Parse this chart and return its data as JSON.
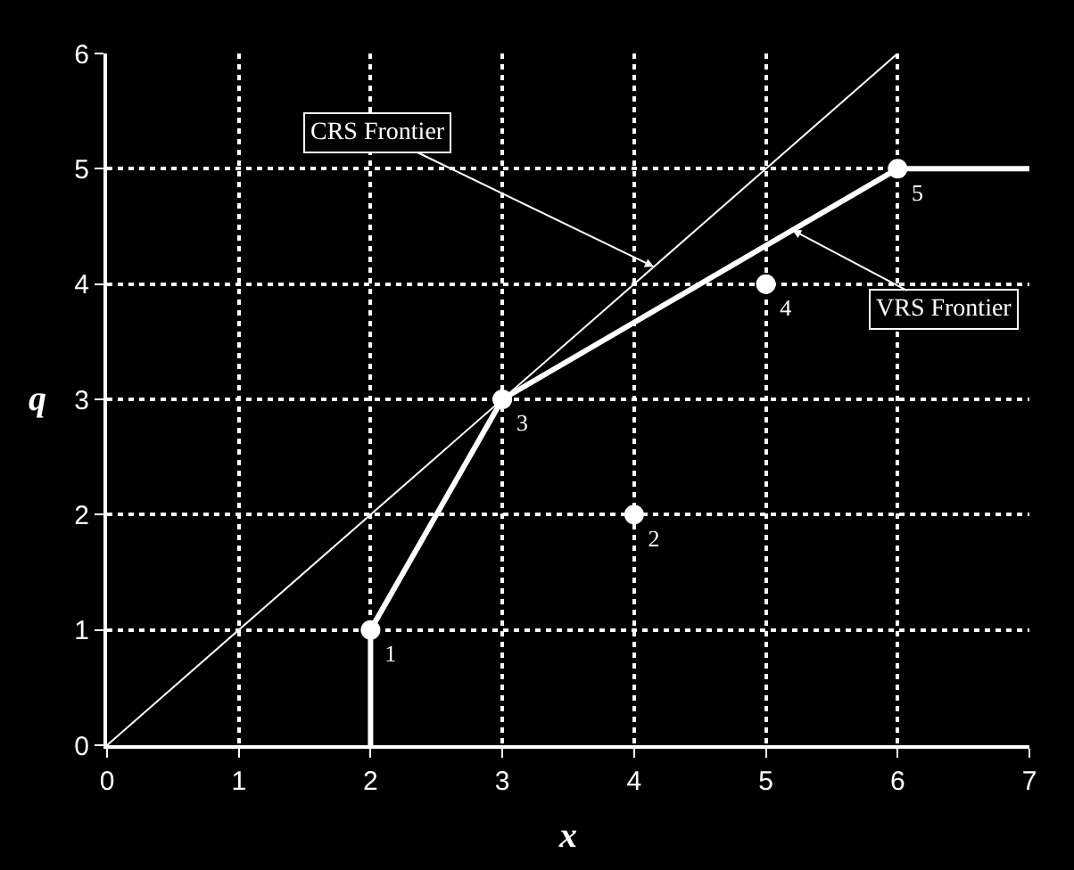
{
  "chart_data": {
    "type": "line",
    "xlabel": "x",
    "ylabel": "q",
    "xlim": [
      0,
      7
    ],
    "ylim": [
      0,
      6
    ],
    "xticks": [
      0,
      1,
      2,
      3,
      4,
      5,
      6,
      7
    ],
    "yticks": [
      0,
      1,
      2,
      3,
      4,
      5,
      6
    ],
    "grid": true,
    "line_style": "solid",
    "series": [
      {
        "color": "#ffffff",
        "x": [
          0,
          6
        ],
        "values": [
          0,
          6
        ]
      },
      {
        "color": "#ffffff",
        "x": [
          2,
          2,
          3,
          6,
          7
        ],
        "values": [
          0,
          1,
          3,
          5,
          5
        ]
      },
      {
        "type": "scatter",
        "color": "#ffffff",
        "marker": "circle",
        "x": [
          2,
          4,
          3,
          5,
          6
        ],
        "values": [
          1,
          2,
          3,
          4,
          5
        ],
        "value_labels": [
          "1",
          "2",
          "3",
          "4",
          "5"
        ]
      }
    ],
    "annotations": [
      {
        "text": "CRS Frontier",
        "x": 4.15,
        "y": 4.15
      },
      {
        "text": "VRS Frontier",
        "x": 5.2,
        "y": 4.47
      }
    ]
  }
}
